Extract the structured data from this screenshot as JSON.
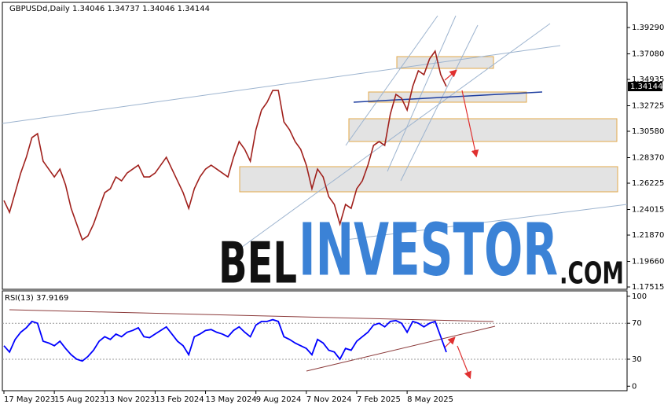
{
  "chart_data": [
    {
      "type": "line",
      "title": "GBPUSDd,Daily  1.34046 1.34737 1.34046 1.34144",
      "price_label": "1.34144",
      "watermark": [
        "BEL",
        "INVESTOR",
        ".COM"
      ],
      "categories": [
        "17 May 2023",
        null,
        null,
        null,
        null,
        null,
        null,
        null,
        null,
        "15 Aug 2023",
        null,
        null,
        null,
        null,
        null,
        null,
        null,
        null,
        "13 Nov 2023",
        null,
        null,
        null,
        null,
        null,
        null,
        null,
        null,
        "13 Feb 2024",
        null,
        null,
        null,
        null,
        null,
        null,
        null,
        null,
        "13 May 2024",
        null,
        null,
        null,
        null,
        null,
        null,
        null,
        null,
        "9 Aug 2024",
        null,
        null,
        null,
        null,
        null,
        null,
        null,
        null,
        "7 Nov 2024",
        null,
        null,
        null,
        null,
        null,
        null,
        null,
        null,
        "7 Feb 2025",
        null,
        null,
        null,
        null,
        null,
        null,
        null,
        null,
        "8 May 2025",
        null,
        null,
        null,
        null,
        null,
        null,
        null
      ],
      "series": [
        {
          "name": "GBPUSDd",
          "color": "#a0201c",
          "values": [
            1.2477,
            1.2378,
            1.2543,
            1.2708,
            1.284,
            1.3005,
            1.3038,
            1.2807,
            1.2741,
            1.2675,
            1.2741,
            1.2609,
            1.2411,
            1.2279,
            1.2147,
            1.218,
            1.2279,
            1.2411,
            1.2543,
            1.2576,
            1.2675,
            1.2642,
            1.2708,
            1.2741,
            1.2774,
            1.2675,
            1.2675,
            1.2708,
            1.2774,
            1.284,
            1.2741,
            1.2642,
            1.2543,
            1.2411,
            1.2576,
            1.2675,
            1.2741,
            1.2774,
            1.2741,
            1.2708,
            1.2675,
            1.284,
            1.2972,
            1.2906,
            1.2807,
            1.3071,
            1.3236,
            1.3302,
            1.3401,
            1.3401,
            1.3137,
            1.3071,
            1.2972,
            1.2906,
            1.2774,
            1.2576,
            1.2741,
            1.2675,
            1.251,
            1.2444,
            1.2279,
            1.2444,
            1.2411,
            1.2576,
            1.2642,
            1.2774,
            1.2939,
            1.2972,
            1.2939,
            1.3203,
            1.3368,
            1.3335,
            1.3236,
            1.3434,
            1.3566,
            1.3533,
            1.3665,
            1.3731,
            1.3533,
            1.3434
          ]
        }
      ],
      "ylim": [
        1.1732,
        1.414
      ],
      "yticks": [
        {
          "value": 1.3929,
          "label": "1.39290"
        },
        {
          "value": 1.3708,
          "label": "1.37080"
        },
        1.34935,
        1.32725,
        {
          "value": 1.3058,
          "label": "1.30580"
        },
        {
          "value": 1.2837,
          "label": "1.28370"
        },
        1.26225,
        1.24015,
        {
          "value": 1.2187,
          "label": "1.21870"
        },
        {
          "value": 1.1966,
          "label": "1.19660"
        },
        1.17515
      ],
      "grid": false
    },
    {
      "type": "line",
      "title": "RSI(13) 37.9169",
      "series": [
        {
          "name": "RSI(13)",
          "color": "#0000ff",
          "values": [
            45,
            38,
            52,
            60,
            65,
            72,
            70,
            50,
            48,
            45,
            50,
            42,
            35,
            30,
            28,
            33,
            40,
            50,
            55,
            52,
            58,
            55,
            60,
            62,
            65,
            55,
            54,
            58,
            62,
            66,
            58,
            50,
            45,
            35,
            55,
            58,
            62,
            63,
            60,
            58,
            55,
            62,
            66,
            60,
            55,
            68,
            72,
            72,
            74,
            72,
            55,
            52,
            48,
            45,
            42,
            35,
            52,
            48,
            40,
            38,
            30,
            42,
            40,
            50,
            55,
            60,
            68,
            70,
            66,
            72,
            73,
            70,
            60,
            72,
            70,
            66,
            70,
            72,
            55,
            37.9169
          ]
        }
      ],
      "ylim": [
        -5,
        106
      ],
      "yticks": [
        100,
        70,
        30,
        0
      ],
      "grid_lines": [
        70,
        30
      ]
    }
  ]
}
